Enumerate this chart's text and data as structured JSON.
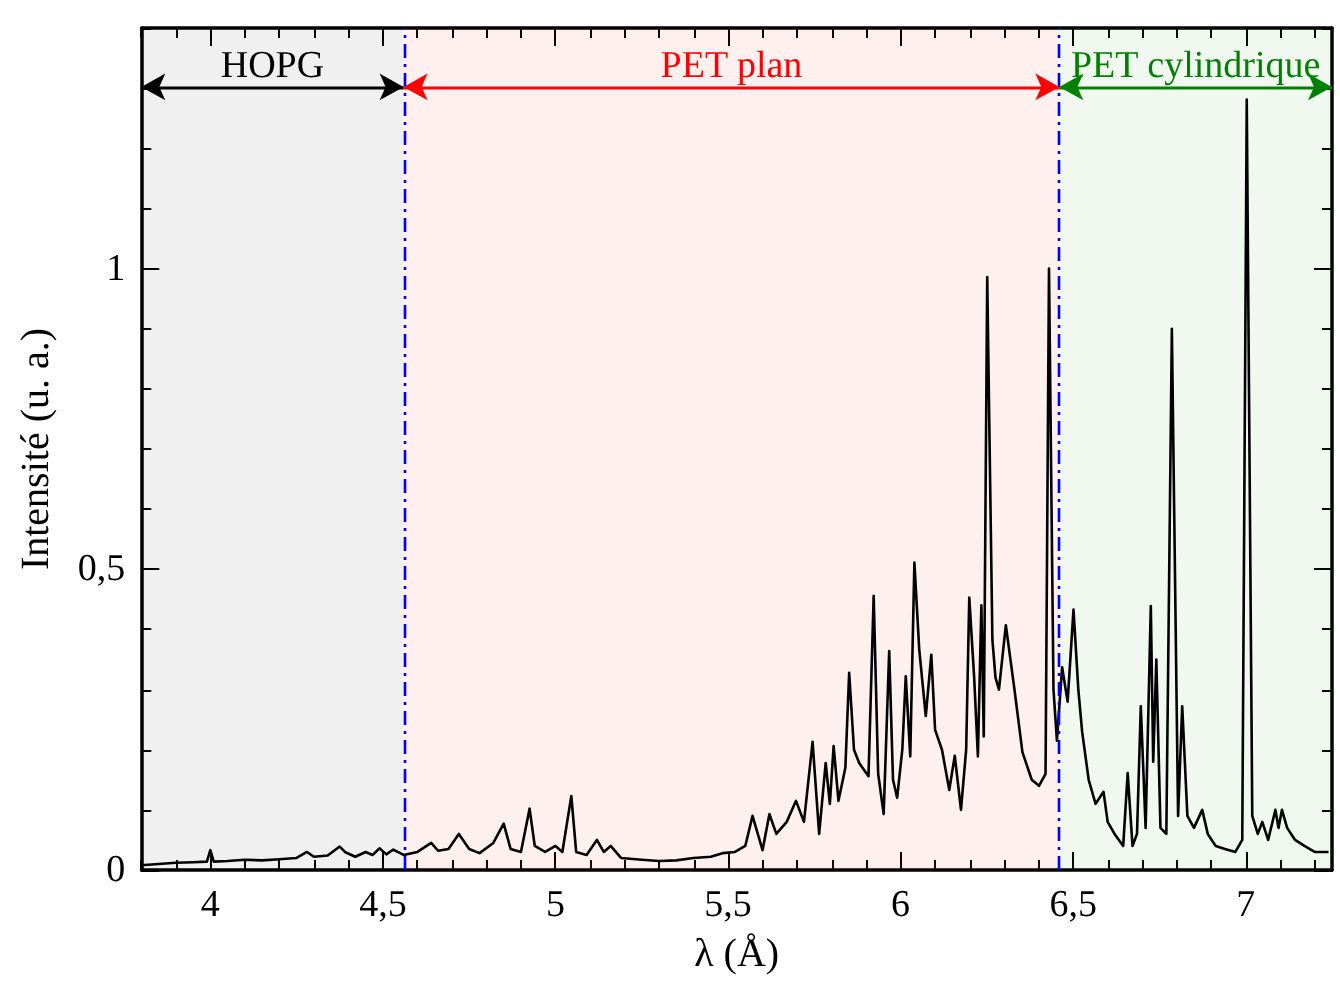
{
  "chart_data": {
    "type": "line",
    "xlabel": "λ (Å)",
    "ylabel": "Intensité (u. a.)",
    "xlim": [
      3.8,
      7.25
    ],
    "ylim": [
      0,
      1.4
    ],
    "xticks": [
      4,
      {
        "value": 4.5,
        "label": "4,5"
      },
      5,
      {
        "value": 5.5,
        "label": "5,5"
      },
      6,
      {
        "value": 6.5,
        "label": "6,5"
      },
      7
    ],
    "yticks": [
      0,
      {
        "value": 0.5,
        "label": "0,5"
      },
      1
    ],
    "grid": false,
    "marker": "none",
    "line_style": "solid",
    "ref_lines": [
      {
        "axis": "x",
        "value": 4.56,
        "color": "#0000ff",
        "line_style": "dashed"
      },
      {
        "axis": "x",
        "value": 6.46,
        "color": "#0000ff",
        "line_style": "dashed"
      }
    ],
    "bands": [
      {
        "axis": "x",
        "from": 3.8,
        "to": 4.56,
        "label": "HOPG",
        "color": "#000000"
      },
      {
        "axis": "x",
        "from": 4.56,
        "to": 6.46,
        "label": "PET plan",
        "color": "#ff0000"
      },
      {
        "axis": "x",
        "from": 6.46,
        "to": 7.25,
        "label": "PET cylindrique",
        "color": "#008000"
      }
    ],
    "series": [
      {
        "color": "#000000",
        "x": [
          3.8,
          3.85,
          3.9,
          3.95,
          3.99,
          4.0,
          4.01,
          4.05,
          4.1,
          4.15,
          4.2,
          4.25,
          4.28,
          4.3,
          4.34,
          4.375,
          4.39,
          4.42,
          4.45,
          4.47,
          4.49,
          4.51,
          4.53,
          4.56,
          4.6,
          4.64,
          4.66,
          4.69,
          4.72,
          4.75,
          4.78,
          4.82,
          4.85,
          4.87,
          4.9,
          4.925,
          4.94,
          4.97,
          5.0,
          5.02,
          5.046,
          5.06,
          5.09,
          5.12,
          5.14,
          5.16,
          5.19,
          5.25,
          5.3,
          5.35,
          5.4,
          5.45,
          5.484,
          5.52,
          5.55,
          5.571,
          5.6,
          5.62,
          5.64,
          5.67,
          5.697,
          5.72,
          5.745,
          5.764,
          5.783,
          5.795,
          5.806,
          5.82,
          5.84,
          5.851,
          5.865,
          5.88,
          5.907,
          5.922,
          5.935,
          5.951,
          5.967,
          5.978,
          5.99,
          6.005,
          6.015,
          6.028,
          6.04,
          6.054,
          6.073,
          6.089,
          6.1,
          6.12,
          6.141,
          6.157,
          6.175,
          6.19,
          6.199,
          6.213,
          6.224,
          6.234,
          6.241,
          6.251,
          6.266,
          6.275,
          6.285,
          6.305,
          6.33,
          6.353,
          6.38,
          6.401,
          6.42,
          6.43,
          6.443,
          6.453,
          6.468,
          6.484,
          6.501,
          6.515,
          6.526,
          6.545,
          6.565,
          6.588,
          6.6,
          6.62,
          6.645,
          6.658,
          6.672,
          6.685,
          6.696,
          6.71,
          6.725,
          6.732,
          6.741,
          6.753,
          6.77,
          6.786,
          6.804,
          6.816,
          6.831,
          6.85,
          6.874,
          6.89,
          6.913,
          6.94,
          6.97,
          6.99,
          7.003,
          7.019,
          7.035,
          7.048,
          7.065,
          7.086,
          7.095,
          7.105,
          7.12,
          7.143,
          7.17,
          7.2,
          7.24
        ],
        "values": [
          0.008,
          0.01,
          0.012,
          0.013,
          0.014,
          0.033,
          0.014,
          0.015,
          0.017,
          0.016,
          0.018,
          0.02,
          0.03,
          0.022,
          0.024,
          0.039,
          0.03,
          0.022,
          0.03,
          0.025,
          0.036,
          0.026,
          0.034,
          0.025,
          0.03,
          0.045,
          0.032,
          0.035,
          0.06,
          0.035,
          0.028,
          0.045,
          0.077,
          0.035,
          0.03,
          0.102,
          0.04,
          0.03,
          0.04,
          0.03,
          0.123,
          0.03,
          0.025,
          0.05,
          0.03,
          0.04,
          0.02,
          0.017,
          0.015,
          0.016,
          0.02,
          0.022,
          0.028,
          0.03,
          0.04,
          0.09,
          0.033,
          0.093,
          0.06,
          0.08,
          0.115,
          0.08,
          0.213,
          0.06,
          0.178,
          0.11,
          0.206,
          0.115,
          0.17,
          0.328,
          0.2,
          0.178,
          0.156,
          0.456,
          0.16,
          0.093,
          0.364,
          0.15,
          0.12,
          0.2,
          0.322,
          0.189,
          0.511,
          0.367,
          0.256,
          0.358,
          0.233,
          0.2,
          0.133,
          0.19,
          0.1,
          0.2,
          0.453,
          0.322,
          0.189,
          0.44,
          0.222,
          0.986,
          0.383,
          0.32,
          0.3,
          0.407,
          0.3,
          0.196,
          0.15,
          0.14,
          0.16,
          1.0,
          0.3,
          0.215,
          0.337,
          0.28,
          0.433,
          0.3,
          0.23,
          0.15,
          0.11,
          0.13,
          0.08,
          0.06,
          0.04,
          0.161,
          0.04,
          0.06,
          0.272,
          0.07,
          0.439,
          0.18,
          0.35,
          0.07,
          0.06,
          0.9,
          0.09,
          0.272,
          0.09,
          0.07,
          0.1,
          0.06,
          0.04,
          0.035,
          0.03,
          0.05,
          1.281,
          0.09,
          0.06,
          0.08,
          0.05,
          0.1,
          0.07,
          0.1,
          0.07,
          0.05,
          0.04,
          0.03,
          0.03
        ]
      }
    ]
  }
}
